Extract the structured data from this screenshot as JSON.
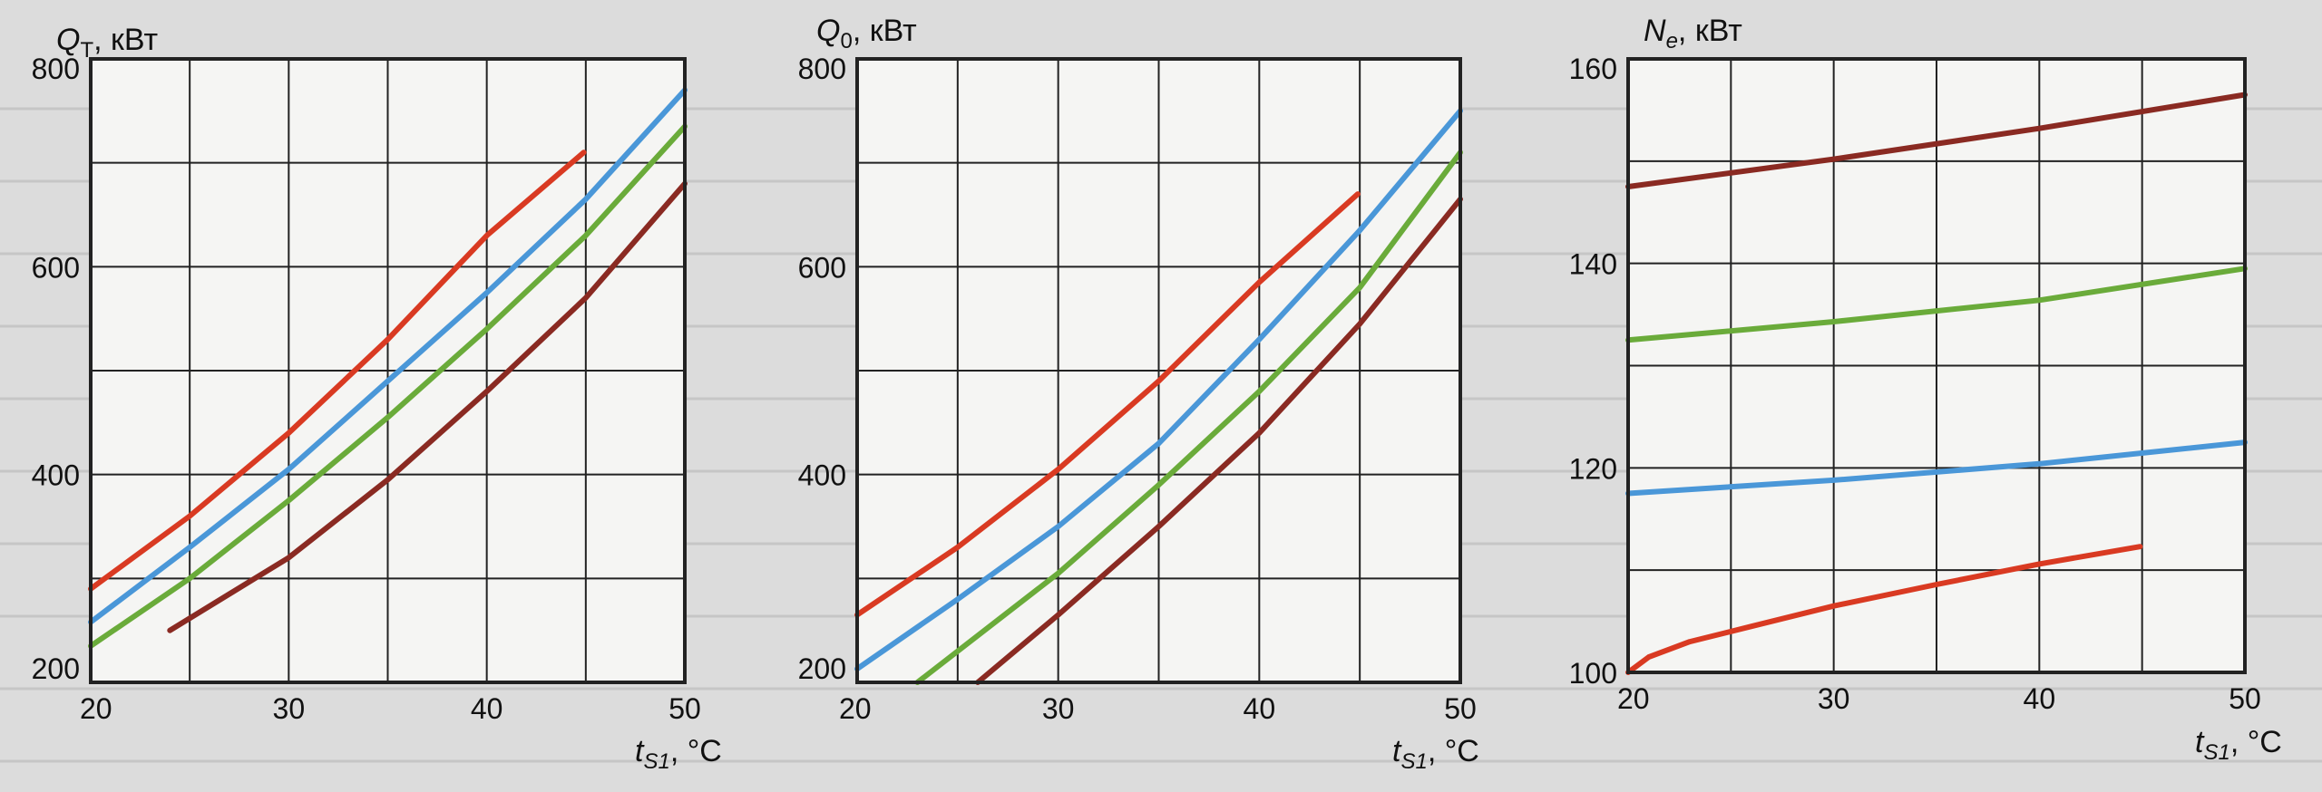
{
  "colors": {
    "background": "#dcdcdc",
    "plot_background": "#f5f5f3",
    "grid": "#222222",
    "red": "#d93a22",
    "blue": "#4a97d8",
    "green": "#6aab3a",
    "brown": "#8a2a22"
  },
  "chart_data": [
    {
      "type": "line",
      "ylabel": "Q_T, кВт",
      "ylabel_main": "Q",
      "ylabel_sub": "T",
      "ylabel_unit": ", кВт",
      "xlabel": "t_S1, °C",
      "xlabel_main": "t",
      "xlabel_sub": "S1",
      "xlabel_unit": ", °C",
      "xlim": [
        20,
        50
      ],
      "ylim": [
        200,
        800
      ],
      "xticks": [
        20,
        30,
        40,
        50
      ],
      "yticks": [
        200,
        400,
        600,
        800
      ],
      "series": [
        {
          "color": "red",
          "x": [
            20,
            25,
            30,
            35,
            40,
            44.9
          ],
          "y": [
            290,
            360,
            440,
            530,
            630,
            710
          ]
        },
        {
          "color": "blue",
          "x": [
            20,
            25,
            30,
            35,
            40,
            45,
            50
          ],
          "y": [
            258,
            330,
            405,
            490,
            575,
            665,
            770
          ]
        },
        {
          "color": "green",
          "x": [
            20,
            25,
            30,
            35,
            40,
            45,
            50
          ],
          "y": [
            235,
            300,
            375,
            455,
            540,
            630,
            735
          ]
        },
        {
          "color": "brown",
          "x": [
            24,
            30,
            35,
            40,
            45,
            50
          ],
          "y": [
            250,
            320,
            395,
            480,
            570,
            680
          ]
        }
      ]
    },
    {
      "type": "line",
      "ylabel": "Q_0, кВт",
      "ylabel_main": "Q",
      "ylabel_sub": "0",
      "ylabel_unit": ", кВт",
      "xlabel": "t_S1, °C",
      "xlabel_main": "t",
      "xlabel_sub": "S1",
      "xlabel_unit": ", °C",
      "xlim": [
        20,
        50
      ],
      "ylim": [
        200,
        800
      ],
      "xticks": [
        20,
        30,
        40,
        50
      ],
      "yticks": [
        200,
        400,
        600,
        800
      ],
      "series": [
        {
          "color": "red",
          "x": [
            20,
            25,
            30,
            35,
            40,
            44.9
          ],
          "y": [
            265,
            330,
            405,
            490,
            585,
            670
          ]
        },
        {
          "color": "blue",
          "x": [
            20,
            25,
            30,
            35,
            40,
            45,
            50
          ],
          "y": [
            213,
            280,
            350,
            430,
            530,
            635,
            750
          ]
        },
        {
          "color": "green",
          "x": [
            23,
            30,
            35,
            40,
            45,
            50
          ],
          "y": [
            200,
            305,
            390,
            480,
            580,
            710
          ]
        },
        {
          "color": "brown",
          "x": [
            26,
            30,
            35,
            40,
            45,
            50
          ],
          "y": [
            200,
            265,
            350,
            440,
            545,
            665
          ]
        }
      ]
    },
    {
      "type": "line",
      "ylabel": "N_e, кВт",
      "ylabel_main": "N",
      "ylabel_sub": "e",
      "ylabel_unit": ", кВт",
      "xlabel": "t_S1, °C",
      "xlabel_main": "t",
      "xlabel_sub": "S1",
      "xlabel_unit": ", °C",
      "xlim": [
        20,
        50
      ],
      "ylim": [
        100,
        160
      ],
      "xticks": [
        20,
        30,
        40,
        50
      ],
      "yticks": [
        100,
        120,
        140,
        160
      ],
      "series": [
        {
          "color": "brown",
          "x": [
            20,
            30,
            40,
            50
          ],
          "y": [
            147.5,
            150.2,
            153.2,
            156.5
          ]
        },
        {
          "color": "green",
          "x": [
            20,
            30,
            40,
            50
          ],
          "y": [
            132.5,
            134.3,
            136.4,
            139.5
          ]
        },
        {
          "color": "blue",
          "x": [
            20,
            30,
            40,
            50
          ],
          "y": [
            117.5,
            118.8,
            120.4,
            122.5
          ]
        },
        {
          "color": "red",
          "x": [
            20,
            21,
            23,
            26,
            30,
            35,
            40,
            44.9
          ],
          "y": [
            100,
            101.5,
            103,
            104.5,
            106.5,
            108.6,
            110.6,
            112.3
          ]
        }
      ]
    }
  ]
}
